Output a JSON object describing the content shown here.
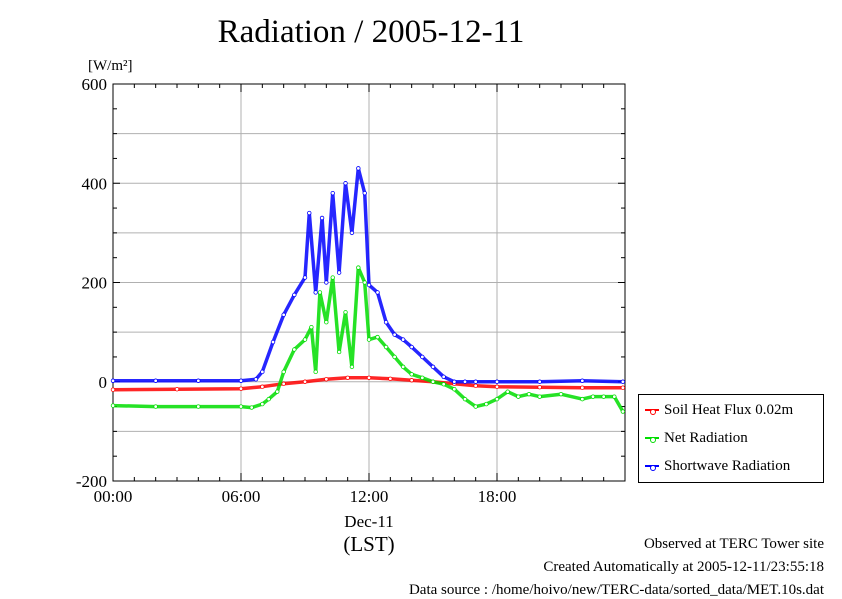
{
  "chart_data": {
    "type": "line",
    "title": "Radiation / 2005-12-11",
    "ylabel_unit": "[W/m²]",
    "xlabel_date": "Dec-11",
    "xlabel_tz": "(LST)",
    "ylim": [
      -200,
      600
    ],
    "yticks": [
      -200,
      0,
      200,
      400,
      600
    ],
    "xlim_hours": [
      0,
      24
    ],
    "xticks": [
      {
        "hour": 0,
        "label": "00:00"
      },
      {
        "hour": 6,
        "label": "06:00"
      },
      {
        "hour": 12,
        "label": "12:00"
      },
      {
        "hour": 18,
        "label": "18:00"
      }
    ],
    "grid": true,
    "legend_position": "bottom-right, outside plot",
    "series": [
      {
        "name": "Soil Heat Flux 0.02m",
        "color": "#ff0000",
        "x": [
          0,
          3,
          6,
          7,
          8,
          9,
          10,
          11,
          12,
          13,
          14,
          15,
          16,
          17,
          18,
          20,
          22,
          23.9
        ],
        "values": [
          -16,
          -15,
          -14,
          -10,
          -4,
          0,
          5,
          8,
          8,
          6,
          3,
          0,
          -4,
          -8,
          -10,
          -11,
          -12,
          -12
        ]
      },
      {
        "name": "Net Radiation",
        "color": "#00dd00",
        "x": [
          0,
          2,
          4,
          6,
          6.5,
          7,
          7.3,
          7.7,
          8,
          8.5,
          9,
          9.3,
          9.5,
          9.7,
          10,
          10.3,
          10.6,
          10.9,
          11.2,
          11.5,
          11.8,
          12,
          12.4,
          12.8,
          13.2,
          13.6,
          14,
          14.5,
          15,
          15.5,
          16,
          16.5,
          17,
          17.5,
          18,
          18.5,
          19,
          19.5,
          20,
          21,
          22,
          22.5,
          23,
          23.5,
          23.9
        ],
        "values": [
          -48,
          -50,
          -50,
          -50,
          -52,
          -45,
          -35,
          -20,
          20,
          65,
          85,
          110,
          20,
          180,
          120,
          210,
          60,
          140,
          30,
          230,
          200,
          85,
          90,
          70,
          50,
          30,
          15,
          8,
          0,
          -5,
          -15,
          -35,
          -50,
          -45,
          -35,
          -20,
          -30,
          -25,
          -30,
          -25,
          -35,
          -30,
          -30,
          -30,
          -60
        ]
      },
      {
        "name": "Shortwave Radiation",
        "color": "#0000ff",
        "x": [
          0,
          2,
          4,
          6,
          6.7,
          7,
          7.5,
          8,
          8.5,
          9,
          9.2,
          9.5,
          9.8,
          10,
          10.3,
          10.6,
          10.9,
          11.2,
          11.5,
          11.8,
          12,
          12.4,
          12.8,
          13.2,
          13.6,
          14,
          14.5,
          15,
          15.5,
          16,
          16.5,
          17,
          18,
          20,
          22,
          23.9
        ],
        "values": [
          2,
          2,
          2,
          2,
          5,
          20,
          80,
          135,
          175,
          210,
          340,
          180,
          330,
          200,
          380,
          220,
          400,
          300,
          430,
          380,
          195,
          180,
          120,
          95,
          85,
          70,
          50,
          30,
          10,
          0,
          0,
          0,
          0,
          0,
          2,
          0
        ]
      }
    ]
  },
  "footer": {
    "line1": "Observed at TERC Tower site",
    "line2": "Created Automatically at 2005-12-11/23:55:18",
    "line3": "Data source : /home/hoivo/new/TERC-data/sorted_data/MET.10s.dat"
  }
}
